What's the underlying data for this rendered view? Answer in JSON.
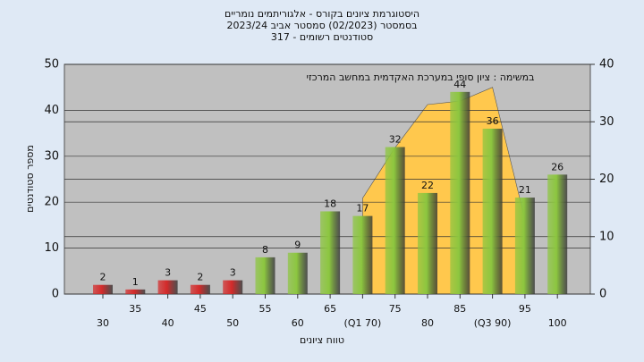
{
  "chart_data": {
    "type": "bar",
    "title": [
      "היסטוגרמת ציונים בקורס - אלגוריתמים נומריים",
      "בסמסטר  (02/2023)  סמסטר אביב 2023/24",
      "סטודנטים רשומים - 317"
    ],
    "annotation": "במשימה : ציון סופי במערכת האקדמית במחשב המרכזי",
    "x_label": "טווח ציונים",
    "y_label": "מספר סטודנטים",
    "categories": [
      "30",
      "35",
      "40",
      "45",
      "50",
      "55",
      "60",
      "65",
      "(Q1 70)",
      "75",
      "80",
      "85",
      "(Q3 90)",
      "95",
      "100"
    ],
    "values": [
      2,
      1,
      3,
      2,
      3,
      8,
      9,
      18,
      17,
      32,
      22,
      44,
      36,
      21,
      26
    ],
    "colors": [
      "#d42a2a",
      "#d42a2a",
      "#d42a2a",
      "#d42a2a",
      "#d42a2a",
      "#8cc63f",
      "#8cc63f",
      "#8cc63f",
      "#8cc63f",
      "#8cc63f",
      "#8cc63f",
      "#8cc63f",
      "#8cc63f",
      "#8cc63f",
      "#8cc63f"
    ],
    "area": {
      "axis": "y2",
      "color": "#ffc84d",
      "values": [
        null,
        null,
        null,
        null,
        null,
        null,
        null,
        null,
        16.7,
        25.5,
        33,
        33.6,
        36,
        13,
        null
      ]
    },
    "ylim": [
      0,
      50
    ],
    "yticks": [
      0,
      10,
      20,
      30,
      40,
      50
    ],
    "y2lim": [
      0,
      40
    ],
    "y2ticks": [
      0,
      10,
      20,
      30,
      40
    ],
    "grid": true
  }
}
